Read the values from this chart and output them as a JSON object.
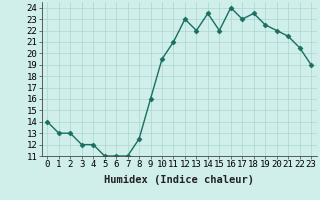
{
  "x": [
    0,
    1,
    2,
    3,
    4,
    5,
    6,
    7,
    8,
    9,
    10,
    11,
    12,
    13,
    14,
    15,
    16,
    17,
    18,
    19,
    20,
    21,
    22,
    23
  ],
  "y": [
    14,
    13,
    13,
    12,
    12,
    11,
    11,
    11,
    12.5,
    16,
    19.5,
    21,
    23,
    22,
    23.5,
    22,
    24,
    23,
    23.5,
    22.5,
    22,
    21.5,
    20.5,
    19
  ],
  "line_color": "#1a6e62",
  "marker": "D",
  "marker_size": 2.5,
  "bg_color": "#d0eeea",
  "grid_color": "#a8d8d0",
  "xlabel": "Humidex (Indice chaleur)",
  "xlim": [
    -0.5,
    23.5
  ],
  "ylim": [
    11,
    24.5
  ],
  "yticks": [
    11,
    12,
    13,
    14,
    15,
    16,
    17,
    18,
    19,
    20,
    21,
    22,
    23,
    24
  ],
  "xticks": [
    0,
    1,
    2,
    3,
    4,
    5,
    6,
    7,
    8,
    9,
    10,
    11,
    12,
    13,
    14,
    15,
    16,
    17,
    18,
    19,
    20,
    21,
    22,
    23
  ],
  "xlabel_fontsize": 7.5,
  "tick_fontsize": 6.5
}
